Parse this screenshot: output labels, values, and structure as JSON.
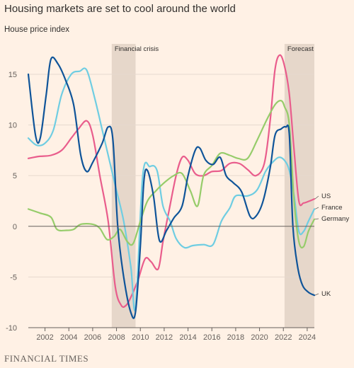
{
  "header": {
    "title": "Housing markets are set to cool around the world",
    "subtitle": "House price index"
  },
  "footer": {
    "source": "FINANCIAL TIMES"
  },
  "chart_data": {
    "type": "line",
    "title": "Housing markets are set to cool around the world",
    "ylabel": "House price index",
    "xlim": [
      2000.6,
      2024.6
    ],
    "ylim": [
      -10,
      18
    ],
    "x_ticks": [
      2002,
      2004,
      2006,
      2008,
      2010,
      2012,
      2014,
      2016,
      2018,
      2020,
      2022,
      2024
    ],
    "y_ticks": [
      -10,
      -5,
      0,
      5,
      10,
      15
    ],
    "zero_line": true,
    "bands": [
      {
        "label": "Financial crisis",
        "from": 2007.6,
        "to": 2009.6
      },
      {
        "label": "Forecast",
        "from": 2022.1,
        "to": 2024.6
      }
    ],
    "series": [
      {
        "name": "US",
        "color": "#e95d8c",
        "points": [
          [
            2000.6,
            6.7
          ],
          [
            2001.5,
            6.9
          ],
          [
            2002.5,
            7.0
          ],
          [
            2003.4,
            7.5
          ],
          [
            2004.2,
            8.7
          ],
          [
            2004.8,
            9.6
          ],
          [
            2005.5,
            10.4
          ],
          [
            2006.0,
            9.0
          ],
          [
            2006.6,
            5.0
          ],
          [
            2007.3,
            0.5
          ],
          [
            2007.9,
            -6.0
          ],
          [
            2008.4,
            -7.8
          ],
          [
            2008.8,
            -7.8
          ],
          [
            2009.2,
            -7.0
          ],
          [
            2009.8,
            -5.3
          ],
          [
            2010.4,
            -3.2
          ],
          [
            2010.9,
            -3.5
          ],
          [
            2011.5,
            -4.2
          ],
          [
            2011.9,
            -1.5
          ],
          [
            2012.4,
            1.5
          ],
          [
            2013.0,
            5.0
          ],
          [
            2013.5,
            6.8
          ],
          [
            2014.0,
            6.5
          ],
          [
            2014.6,
            5.2
          ],
          [
            2015.3,
            5.0
          ],
          [
            2016.0,
            5.4
          ],
          [
            2016.8,
            5.5
          ],
          [
            2017.5,
            6.2
          ],
          [
            2018.3,
            6.2
          ],
          [
            2019.0,
            5.6
          ],
          [
            2019.7,
            5.0
          ],
          [
            2020.4,
            6.2
          ],
          [
            2020.9,
            10.5
          ],
          [
            2021.3,
            15.5
          ],
          [
            2021.7,
            16.9
          ],
          [
            2022.1,
            15.8
          ],
          [
            2022.5,
            13.0
          ],
          [
            2022.9,
            7.5
          ],
          [
            2023.3,
            2.5
          ],
          [
            2023.7,
            2.3
          ],
          [
            2024.2,
            2.5
          ],
          [
            2024.6,
            2.7
          ]
        ]
      },
      {
        "name": "France",
        "color": "#6fcde2",
        "points": [
          [
            2000.6,
            8.7
          ],
          [
            2001.3,
            8.0
          ],
          [
            2002.0,
            8.2
          ],
          [
            2002.7,
            9.5
          ],
          [
            2003.4,
            13.0
          ],
          [
            2004.2,
            15.0
          ],
          [
            2004.9,
            15.3
          ],
          [
            2005.5,
            15.4
          ],
          [
            2006.2,
            12.5
          ],
          [
            2006.9,
            9.0
          ],
          [
            2007.5,
            6.0
          ],
          [
            2008.0,
            3.5
          ],
          [
            2008.6,
            0.5
          ],
          [
            2009.2,
            -4.0
          ],
          [
            2009.6,
            -8.0
          ],
          [
            2010.2,
            5.0
          ],
          [
            2010.8,
            5.9
          ],
          [
            2011.4,
            5.5
          ],
          [
            2011.9,
            2.0
          ],
          [
            2012.5,
            0.5
          ],
          [
            2013.0,
            -1.2
          ],
          [
            2013.7,
            -2.1
          ],
          [
            2014.4,
            -1.9
          ],
          [
            2015.3,
            -1.8
          ],
          [
            2016.1,
            -1.8
          ],
          [
            2016.8,
            0.5
          ],
          [
            2017.5,
            1.8
          ],
          [
            2018.0,
            3.0
          ],
          [
            2019.0,
            3.0
          ],
          [
            2019.8,
            3.6
          ],
          [
            2020.5,
            5.4
          ],
          [
            2021.0,
            6.2
          ],
          [
            2021.6,
            6.8
          ],
          [
            2022.1,
            6.5
          ],
          [
            2022.5,
            5.5
          ],
          [
            2022.9,
            3.0
          ],
          [
            2023.3,
            -0.5
          ],
          [
            2023.7,
            -0.5
          ],
          [
            2024.1,
            0.5
          ],
          [
            2024.6,
            1.7
          ]
        ]
      },
      {
        "name": "Germany",
        "color": "#96cc6a",
        "points": [
          [
            2000.6,
            1.7
          ],
          [
            2001.6,
            1.3
          ],
          [
            2002.5,
            0.9
          ],
          [
            2003.0,
            -0.3
          ],
          [
            2003.8,
            -0.4
          ],
          [
            2004.4,
            -0.3
          ],
          [
            2005.0,
            0.2
          ],
          [
            2006.0,
            0.2
          ],
          [
            2006.6,
            -0.2
          ],
          [
            2007.2,
            -1.3
          ],
          [
            2007.8,
            -1.0
          ],
          [
            2008.3,
            -0.3
          ],
          [
            2008.9,
            -1.5
          ],
          [
            2009.4,
            -1.7
          ],
          [
            2010.0,
            0.5
          ],
          [
            2010.6,
            2.5
          ],
          [
            2011.3,
            3.5
          ],
          [
            2012.0,
            4.3
          ],
          [
            2012.8,
            5.0
          ],
          [
            2013.5,
            5.2
          ],
          [
            2014.2,
            3.5
          ],
          [
            2014.8,
            2.0
          ],
          [
            2015.3,
            5.0
          ],
          [
            2016.0,
            6.0
          ],
          [
            2016.7,
            7.2
          ],
          [
            2017.5,
            7.0
          ],
          [
            2018.2,
            6.7
          ],
          [
            2019.0,
            6.7
          ],
          [
            2019.8,
            8.5
          ],
          [
            2020.6,
            10.5
          ],
          [
            2021.3,
            12.0
          ],
          [
            2021.8,
            12.4
          ],
          [
            2022.1,
            11.8
          ],
          [
            2022.5,
            10.0
          ],
          [
            2022.9,
            2.5
          ],
          [
            2023.3,
            -1.5
          ],
          [
            2023.7,
            -2.0
          ],
          [
            2024.1,
            -0.5
          ],
          [
            2024.6,
            0.7
          ]
        ]
      },
      {
        "name": "UK",
        "color": "#0f5499",
        "points": [
          [
            2000.6,
            15.0
          ],
          [
            2001.2,
            9.0
          ],
          [
            2001.6,
            8.7
          ],
          [
            2002.1,
            13.0
          ],
          [
            2002.5,
            16.5
          ],
          [
            2003.1,
            16.0
          ],
          [
            2003.7,
            14.5
          ],
          [
            2004.4,
            12.0
          ],
          [
            2005.0,
            7.0
          ],
          [
            2005.5,
            5.4
          ],
          [
            2006.0,
            6.3
          ],
          [
            2006.8,
            8.2
          ],
          [
            2007.3,
            9.8
          ],
          [
            2007.7,
            8.5
          ],
          [
            2008.1,
            0.0
          ],
          [
            2008.6,
            -5.0
          ],
          [
            2009.2,
            -8.5
          ],
          [
            2009.6,
            -8.4
          ],
          [
            2010.0,
            -2.0
          ],
          [
            2010.3,
            4.5
          ],
          [
            2010.6,
            5.5
          ],
          [
            2011.1,
            3.0
          ],
          [
            2011.6,
            -1.4
          ],
          [
            2012.2,
            -0.4
          ],
          [
            2012.8,
            0.8
          ],
          [
            2013.5,
            2.0
          ],
          [
            2014.0,
            5.0
          ],
          [
            2014.6,
            7.5
          ],
          [
            2015.0,
            7.7
          ],
          [
            2015.5,
            6.5
          ],
          [
            2016.1,
            6.1
          ],
          [
            2016.7,
            6.8
          ],
          [
            2017.2,
            5.0
          ],
          [
            2017.8,
            4.3
          ],
          [
            2018.5,
            3.4
          ],
          [
            2019.2,
            1.0
          ],
          [
            2019.7,
            1.0
          ],
          [
            2020.3,
            2.5
          ],
          [
            2020.9,
            5.8
          ],
          [
            2021.3,
            9.0
          ],
          [
            2021.8,
            9.6
          ],
          [
            2022.2,
            9.8
          ],
          [
            2022.5,
            9.0
          ],
          [
            2022.8,
            0.0
          ],
          [
            2023.2,
            -4.0
          ],
          [
            2023.6,
            -5.8
          ],
          [
            2024.1,
            -6.5
          ],
          [
            2024.6,
            -6.8
          ]
        ]
      }
    ]
  }
}
